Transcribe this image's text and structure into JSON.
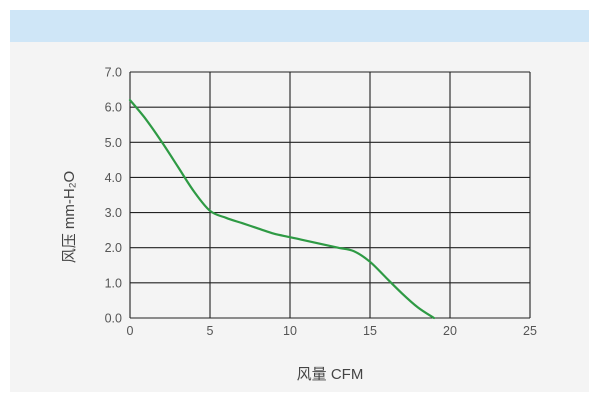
{
  "colors": {
    "header_band": "#cfe6f7",
    "panel_background": "#f4f4f4",
    "grid": "#222222",
    "curve": "#2e9a44"
  },
  "chart_data": {
    "type": "line",
    "title": "",
    "xlabel": "风量 CFM",
    "ylabel": "风压 mm-H₂O",
    "xlim": [
      0,
      25
    ],
    "ylim": [
      0,
      7
    ],
    "xticks": [
      "0",
      "5",
      "10",
      "15",
      "20",
      "25"
    ],
    "yticks": [
      "0.0",
      "1.0",
      "2.0",
      "3.0",
      "4.0",
      "5.0",
      "6.0",
      "7.0"
    ],
    "grid": true,
    "legend": "none",
    "series": [
      {
        "color": "#2e9a44",
        "x": [
          0,
          1,
          2,
          3,
          4,
          5,
          6,
          7,
          8,
          9,
          10,
          11,
          12,
          13,
          14,
          15,
          16,
          17,
          18,
          19
        ],
        "y": [
          6.2,
          5.65,
          5.0,
          4.3,
          3.6,
          3.05,
          2.85,
          2.7,
          2.55,
          2.4,
          2.3,
          2.2,
          2.1,
          2.0,
          1.9,
          1.6,
          1.15,
          0.7,
          0.3,
          0.0
        ]
      }
    ]
  }
}
